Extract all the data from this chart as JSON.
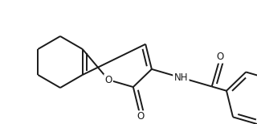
{
  "bg_color": "#ffffff",
  "line_color": "#1a1a1a",
  "line_width": 1.4,
  "font_size": 8.5,
  "figsize": [
    3.2,
    1.54
  ],
  "dpi": 100,
  "xlim": [
    0,
    320
  ],
  "ylim": [
    0,
    154
  ]
}
